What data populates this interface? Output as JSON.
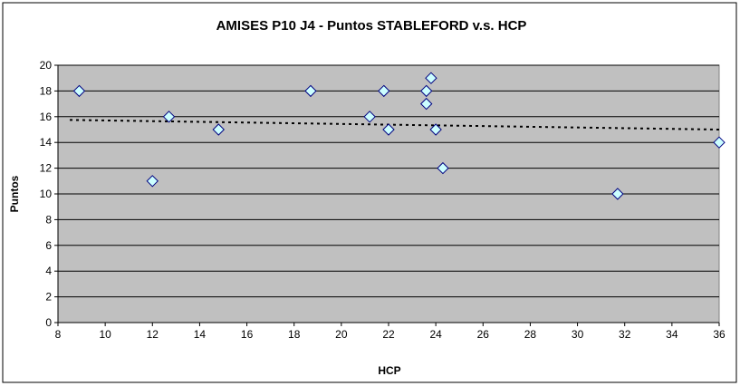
{
  "chart_data": {
    "type": "scatter",
    "title": "AMISES P10 J4 - Puntos STABLEFORD v.s. HCP",
    "xlabel": "HCP",
    "ylabel": "Puntos",
    "xlim": [
      8,
      36
    ],
    "ylim": [
      0,
      20
    ],
    "x_ticks": [
      8,
      10,
      12,
      14,
      16,
      18,
      20,
      22,
      24,
      26,
      28,
      30,
      32,
      34,
      36
    ],
    "y_ticks": [
      0,
      2,
      4,
      6,
      8,
      10,
      12,
      14,
      16,
      18,
      20
    ],
    "grid": "horizontal",
    "legend": "none",
    "points": [
      {
        "x": 8.9,
        "y": 18
      },
      {
        "x": 12.0,
        "y": 11
      },
      {
        "x": 12.7,
        "y": 16
      },
      {
        "x": 14.8,
        "y": 15
      },
      {
        "x": 18.7,
        "y": 18
      },
      {
        "x": 21.2,
        "y": 16
      },
      {
        "x": 21.8,
        "y": 18
      },
      {
        "x": 22.0,
        "y": 15
      },
      {
        "x": 23.6,
        "y": 18
      },
      {
        "x": 23.6,
        "y": 17
      },
      {
        "x": 23.8,
        "y": 19
      },
      {
        "x": 24.0,
        "y": 15
      },
      {
        "x": 24.3,
        "y": 12
      },
      {
        "x": 31.7,
        "y": 10
      },
      {
        "x": 36.0,
        "y": 14
      }
    ],
    "trendline": {
      "type": "linear",
      "style": "dotted",
      "x": [
        8.5,
        36
      ],
      "y": [
        15.75,
        15.0
      ]
    },
    "colors": {
      "plot_background": "#c0c0c0",
      "chart_background": "#ffffff",
      "gridline": "#000000",
      "marker_fill": "#ccffff",
      "marker_stroke": "#000080",
      "trendline": "#000000"
    }
  }
}
